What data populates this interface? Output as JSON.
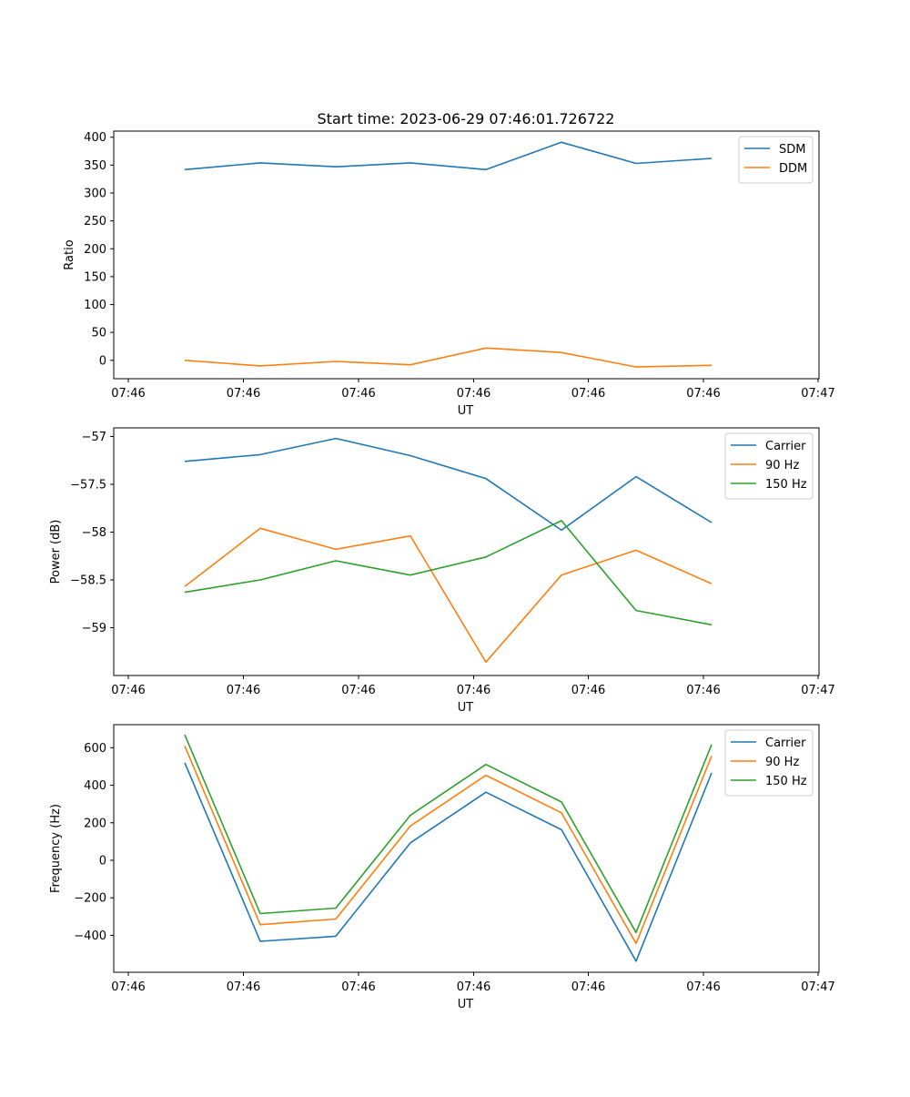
{
  "figure": {
    "title": "Start time: 2023-06-29 07:46:01.726722"
  },
  "colors": {
    "blue": "#1f77b4",
    "orange": "#ff7f0e",
    "green": "#2ca02c"
  },
  "chart_data": [
    {
      "type": "line",
      "title": "Start time: 2023-06-29 07:46:01.726722",
      "xlabel": "UT",
      "ylabel": "Ratio",
      "xticks": [
        "07:46",
        "07:46",
        "07:46",
        "07:46",
        "07:46",
        "07:46",
        "07:46",
        "07:47"
      ],
      "yticks": [
        0,
        50,
        100,
        150,
        200,
        250,
        300,
        350,
        400
      ],
      "ylim": [
        -33,
        411
      ],
      "legend_position": "top-right",
      "series": [
        {
          "name": "SDM",
          "color": "#1f77b4",
          "values": [
            342,
            354,
            347,
            354,
            342,
            391,
            353,
            362
          ]
        },
        {
          "name": "DDM",
          "color": "#ff7f0e",
          "values": [
            0,
            -10,
            -2,
            -8,
            22,
            14,
            -12,
            -9
          ]
        }
      ]
    },
    {
      "type": "line",
      "title": "",
      "xlabel": "UT",
      "ylabel": "Power (dB)",
      "xticks": [
        "07:46",
        "07:46",
        "07:46",
        "07:46",
        "07:46",
        "07:46",
        "07:46",
        "07:47"
      ],
      "yticks": [
        -59.0,
        -58.5,
        -58.0,
        -57.5,
        -57.0
      ],
      "ylim": [
        -59.5,
        -56.91
      ],
      "legend_position": "top-right",
      "series": [
        {
          "name": "Carrier",
          "color": "#1f77b4",
          "values": [
            -57.26,
            -57.19,
            -57.02,
            -57.2,
            -57.44,
            -57.98,
            -57.42,
            -57.9
          ]
        },
        {
          "name": "90 Hz",
          "color": "#ff7f0e",
          "values": [
            -58.57,
            -57.96,
            -58.18,
            -58.04,
            -59.36,
            -58.45,
            -58.19,
            -58.54
          ]
        },
        {
          "name": "150 Hz",
          "color": "#2ca02c",
          "values": [
            -58.63,
            -58.5,
            -58.3,
            -58.45,
            -58.26,
            -57.88,
            -58.82,
            -58.97
          ]
        }
      ]
    },
    {
      "type": "line",
      "title": "",
      "xlabel": "UT",
      "ylabel": "Frequency (Hz)",
      "xticks": [
        "07:46",
        "07:46",
        "07:46",
        "07:46",
        "07:46",
        "07:46",
        "07:46",
        "07:47"
      ],
      "yticks": [
        -400,
        -200,
        0,
        200,
        400,
        600
      ],
      "ylim": [
        -597,
        723
      ],
      "legend_position": "top-right",
      "series": [
        {
          "name": "Carrier",
          "color": "#1f77b4",
          "values": [
            520,
            -432,
            -405,
            93,
            363,
            163,
            -538,
            466
          ]
        },
        {
          "name": "90 Hz",
          "color": "#ff7f0e",
          "values": [
            610,
            -343,
            -313,
            183,
            453,
            253,
            -443,
            556
          ]
        },
        {
          "name": "150 Hz",
          "color": "#2ca02c",
          "values": [
            669,
            -284,
            -255,
            240,
            511,
            311,
            -385,
            617
          ]
        }
      ]
    }
  ]
}
